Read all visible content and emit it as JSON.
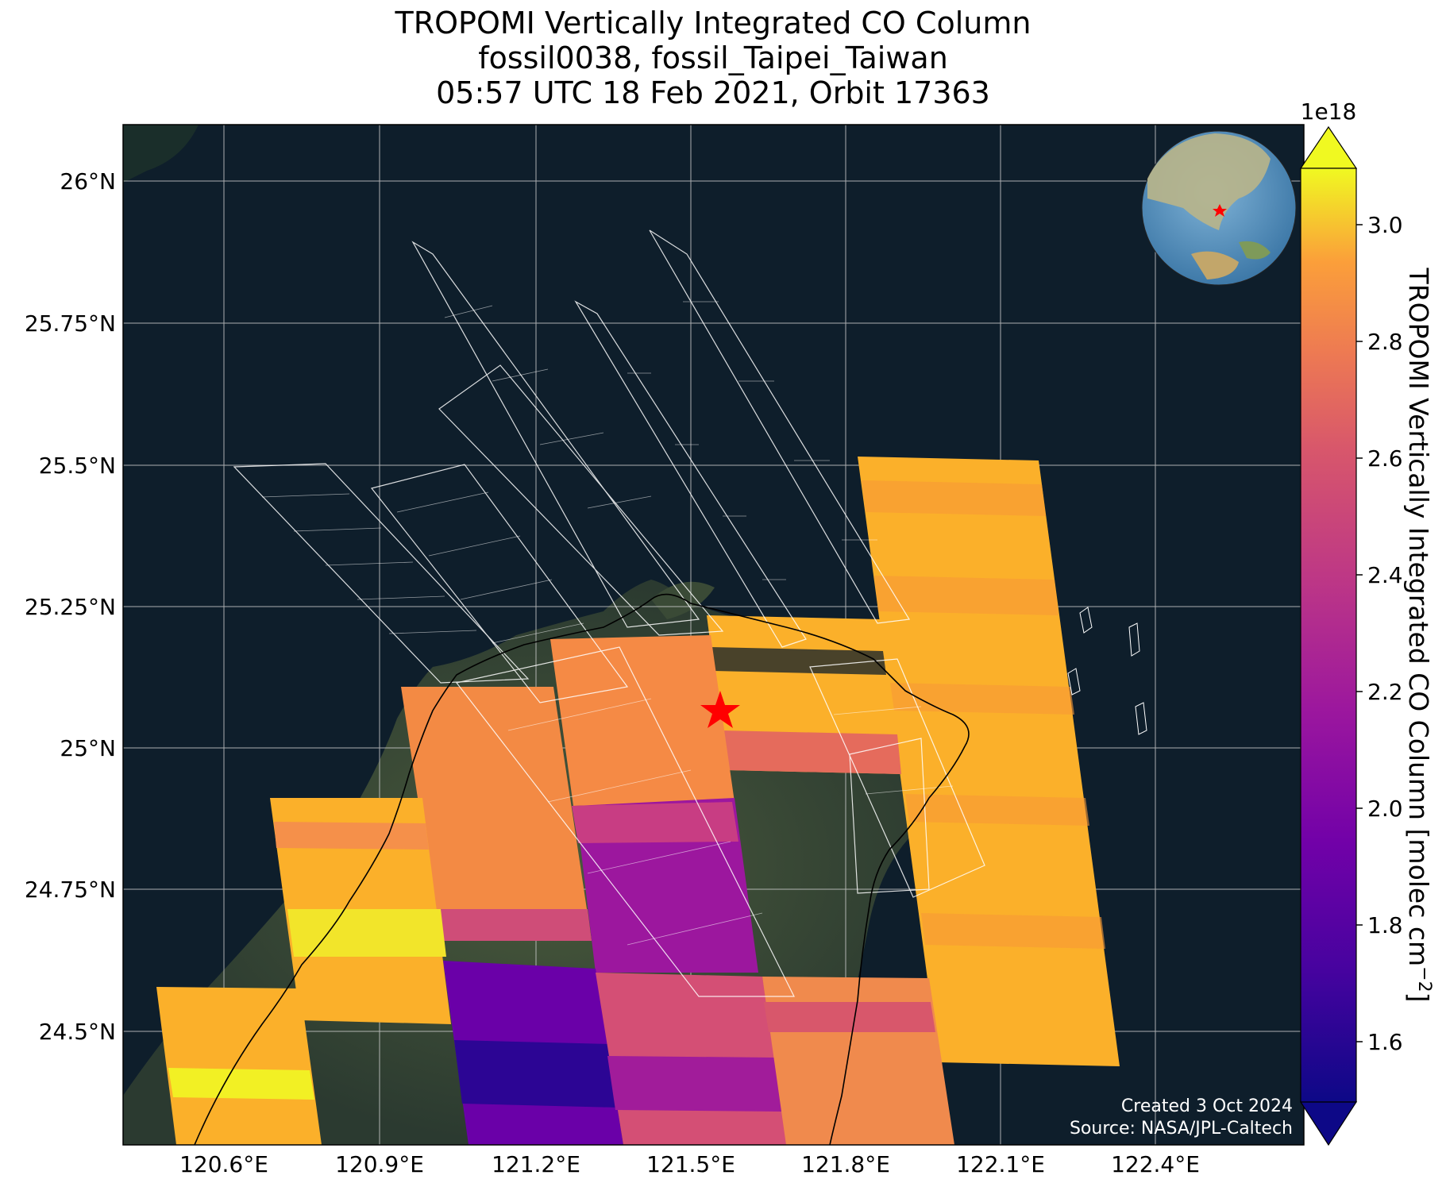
{
  "title": {
    "line1": "TROPOMI Vertically Integrated CO Column",
    "line2": "fossil0038, fossil_Taipei_Taiwan",
    "line3": "05:57 UTC 18 Feb 2021, Orbit 17363"
  },
  "map": {
    "lon_ticks": [
      "120.6°E",
      "120.9°E",
      "121.2°E",
      "121.5°E",
      "121.8°E",
      "122.1°E",
      "122.4°E"
    ],
    "lat_ticks": [
      "26°N",
      "25.75°N",
      "25.5°N",
      "25.25°N",
      "25°N",
      "24.75°N",
      "24.5°N"
    ],
    "lon_range": [
      120.45,
      122.7
    ],
    "lat_range": [
      24.3,
      26.1
    ],
    "background": "satellite imagery (dark ocean, green land)",
    "target_marker": {
      "lon": 121.56,
      "lat": 25.04,
      "symbol": "red star"
    },
    "inset_globe": {
      "center": "East Asia / Western Pacific",
      "marker": "red star"
    },
    "credit": {
      "created": "Created 3 Oct 2024",
      "source": "Source: NASA/JPL-Caltech"
    }
  },
  "colorbar": {
    "label": "TROPOMI Vertically Integrated CO Column [molec cm",
    "label_sup": "−2",
    "label_end": "]",
    "scale_label": "1e18",
    "ticks": [
      "1.6",
      "1.8",
      "2.0",
      "2.2",
      "2.4",
      "2.6",
      "2.8",
      "3.0"
    ],
    "range": [
      1.5,
      3.1
    ],
    "colormap": "plasma",
    "extend": "both"
  },
  "colors": {
    "ocean": "#0e1e2b",
    "land": "#2f3a2c",
    "target": "#ff0000",
    "grid": "#c8c8c8"
  }
}
